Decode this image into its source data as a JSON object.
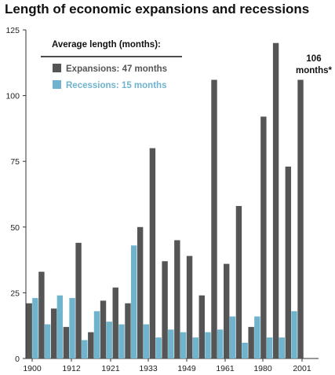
{
  "chart_data": {
    "type": "bar",
    "title": "Length of economic expansions and recessions",
    "xlabel": "",
    "ylabel": "",
    "ylim": [
      0,
      125
    ],
    "yticks": [
      0,
      25,
      50,
      75,
      100,
      125
    ],
    "xtick_labels": [
      "1900",
      "1912",
      "1921",
      "1933",
      "1949",
      "1961",
      "1980",
      "2001"
    ],
    "legend_heading": "Average length (months):",
    "legend_position": "top-left",
    "grid": false,
    "series": [
      {
        "name": "Expansions: 47 months",
        "color": "#555555",
        "values": [
          21,
          33,
          19,
          12,
          44,
          10,
          22,
          27,
          21,
          50,
          80,
          37,
          45,
          39,
          24,
          106,
          36,
          58,
          12,
          92,
          120,
          73,
          106
        ]
      },
      {
        "name": "Recessions: 15 months",
        "color": "#6fb3cd",
        "values": [
          23,
          13,
          24,
          23,
          7,
          18,
          14,
          13,
          43,
          13,
          8,
          11,
          10,
          8,
          10,
          11,
          16,
          6,
          16,
          8,
          8,
          18,
          null
        ]
      }
    ],
    "annotation": {
      "lines": [
        "106",
        "months*"
      ]
    }
  }
}
